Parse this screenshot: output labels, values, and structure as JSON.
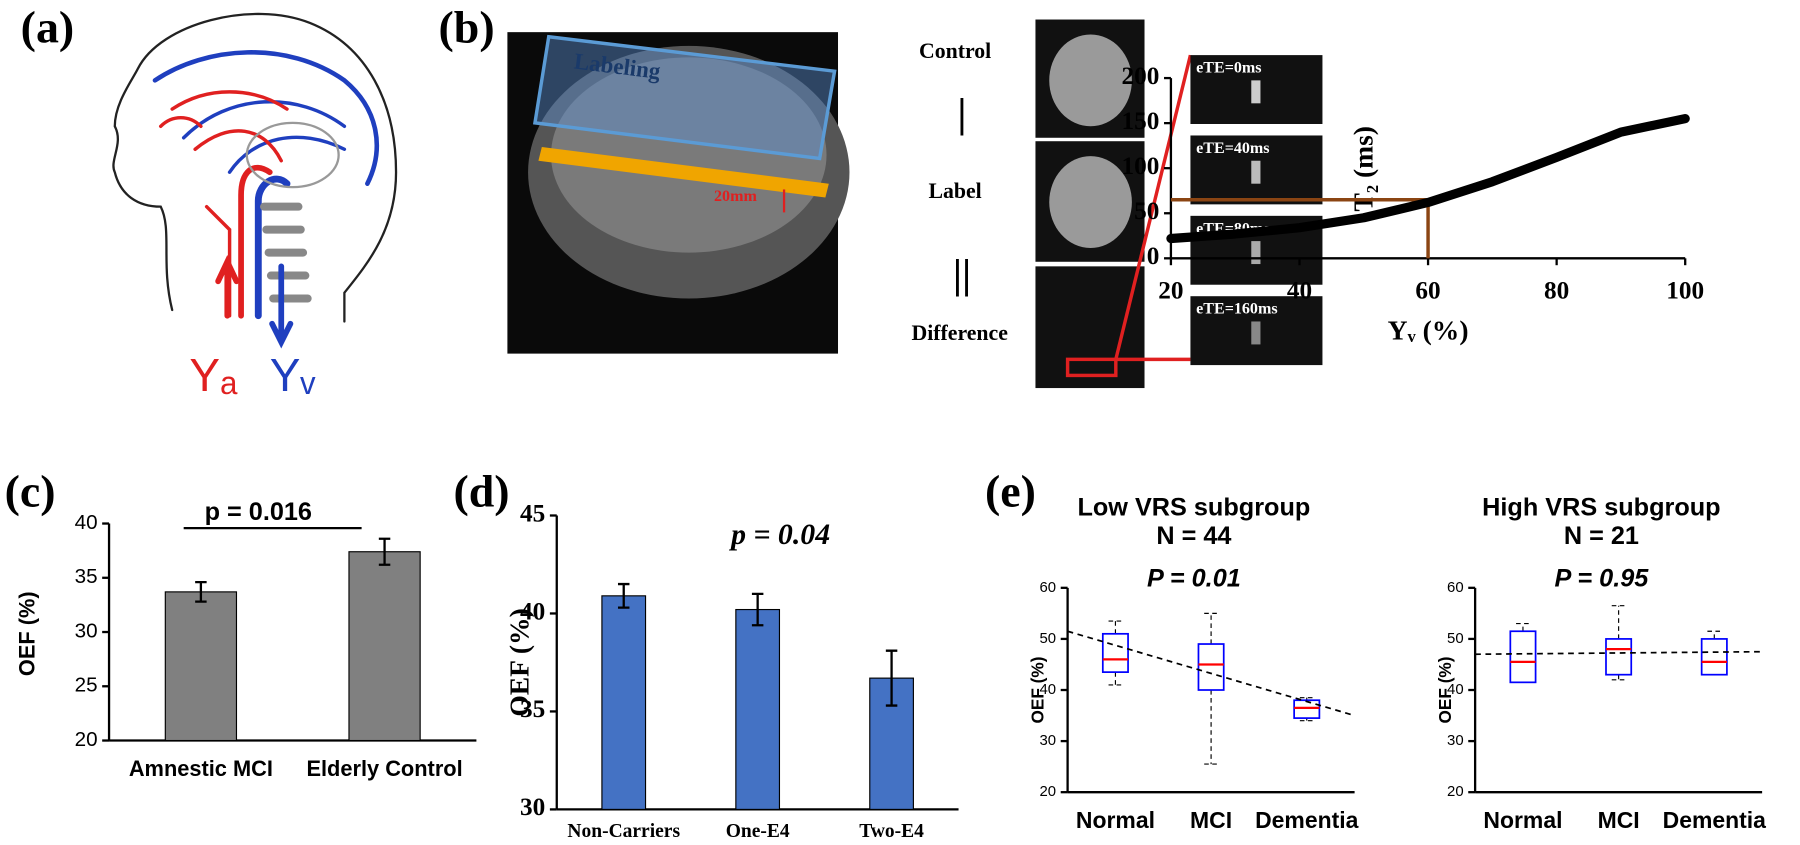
{
  "panel_labels": [
    "(a)",
    "(b)",
    "(c)",
    "(d)",
    "(e)"
  ],
  "diagram_a": {
    "arterial_label": "Yₐ",
    "venous_label": "Yᵥ"
  },
  "diagram_b": {
    "region_label": "Labeling",
    "gap_label": "20mm",
    "rows": [
      "Control",
      "|",
      "Label",
      "||",
      "Difference"
    ],
    "echo_labels": [
      "eTE=0ms",
      "eTE=40ms",
      "eTE=80ms",
      "eTE=160ms"
    ]
  },
  "chart_data": [
    {
      "type": "line",
      "xlabel": "Yᵥ (%)",
      "ylabel": "T₂ (ms)",
      "x": [
        20,
        30,
        40,
        50,
        60,
        70,
        80,
        90,
        100
      ],
      "values": [
        22,
        27,
        34,
        45,
        62,
        85,
        112,
        140,
        155
      ],
      "color": "#000000",
      "guide": {
        "x": 60,
        "y": 65
      },
      "guide_color": "#8b4513",
      "xlim": [
        20,
        100
      ],
      "xticks": [
        20,
        40,
        60,
        80,
        100
      ],
      "ylim": [
        0,
        200
      ],
      "yticks": [
        0,
        50,
        100,
        150,
        200
      ]
    },
    {
      "type": "bar",
      "ylabel": "OEF (%)",
      "annotation": "p = 0.016",
      "categories": [
        "Amnestic MCI",
        "Elderly Control"
      ],
      "values": [
        33.7,
        37.4
      ],
      "errors": [
        0.9,
        1.2
      ],
      "color": "#808080",
      "ylim": [
        20,
        40
      ],
      "yticks": [
        20,
        25,
        30,
        35,
        40
      ]
    },
    {
      "type": "bar",
      "ylabel": "OEF (%)",
      "annotation": "p = 0.04",
      "categories": [
        "Non-Carriers",
        "One-E4",
        "Two-E4"
      ],
      "values": [
        40.9,
        40.2,
        36.7
      ],
      "errors": [
        0.6,
        0.8,
        1.4
      ],
      "color": "#4472c4",
      "ylim": [
        30,
        45
      ],
      "yticks": [
        30,
        35,
        40,
        45
      ]
    },
    {
      "type": "box",
      "title": "Low VRS subgroup",
      "subtitle": "N = 44",
      "annotation": "P = 0.01",
      "ylabel": "OEF (%)",
      "categories": [
        "Normal",
        "MCI",
        "Dementia"
      ],
      "min": [
        41,
        25.5,
        34
      ],
      "q1": [
        43.5,
        40,
        34.5
      ],
      "median": [
        46,
        45,
        36.5
      ],
      "q3": [
        51,
        49,
        38
      ],
      "max": [
        53.5,
        55,
        38.5
      ],
      "trend": [
        51.5,
        35
      ],
      "color": "#0000ff",
      "median_color": "#ff0000",
      "ylim": [
        20,
        60
      ],
      "yticks": [
        20,
        30,
        40,
        50,
        60
      ]
    },
    {
      "type": "box",
      "title": "High VRS subgroup",
      "subtitle": "N = 21",
      "annotation": "P = 0.95",
      "ylabel": "OEF (%)",
      "categories": [
        "Normal",
        "MCI",
        "Dementia"
      ],
      "min": [
        41.5,
        42,
        43
      ],
      "q1": [
        41.5,
        43,
        43
      ],
      "median": [
        45.5,
        48,
        45.5
      ],
      "q3": [
        51.5,
        50,
        50
      ],
      "max": [
        53,
        56.5,
        51.5
      ],
      "trend": [
        47,
        47.5
      ],
      "color": "#0000ff",
      "median_color": "#ff0000",
      "ylim": [
        20,
        60
      ],
      "yticks": [
        20,
        30,
        40,
        50,
        60
      ]
    }
  ]
}
